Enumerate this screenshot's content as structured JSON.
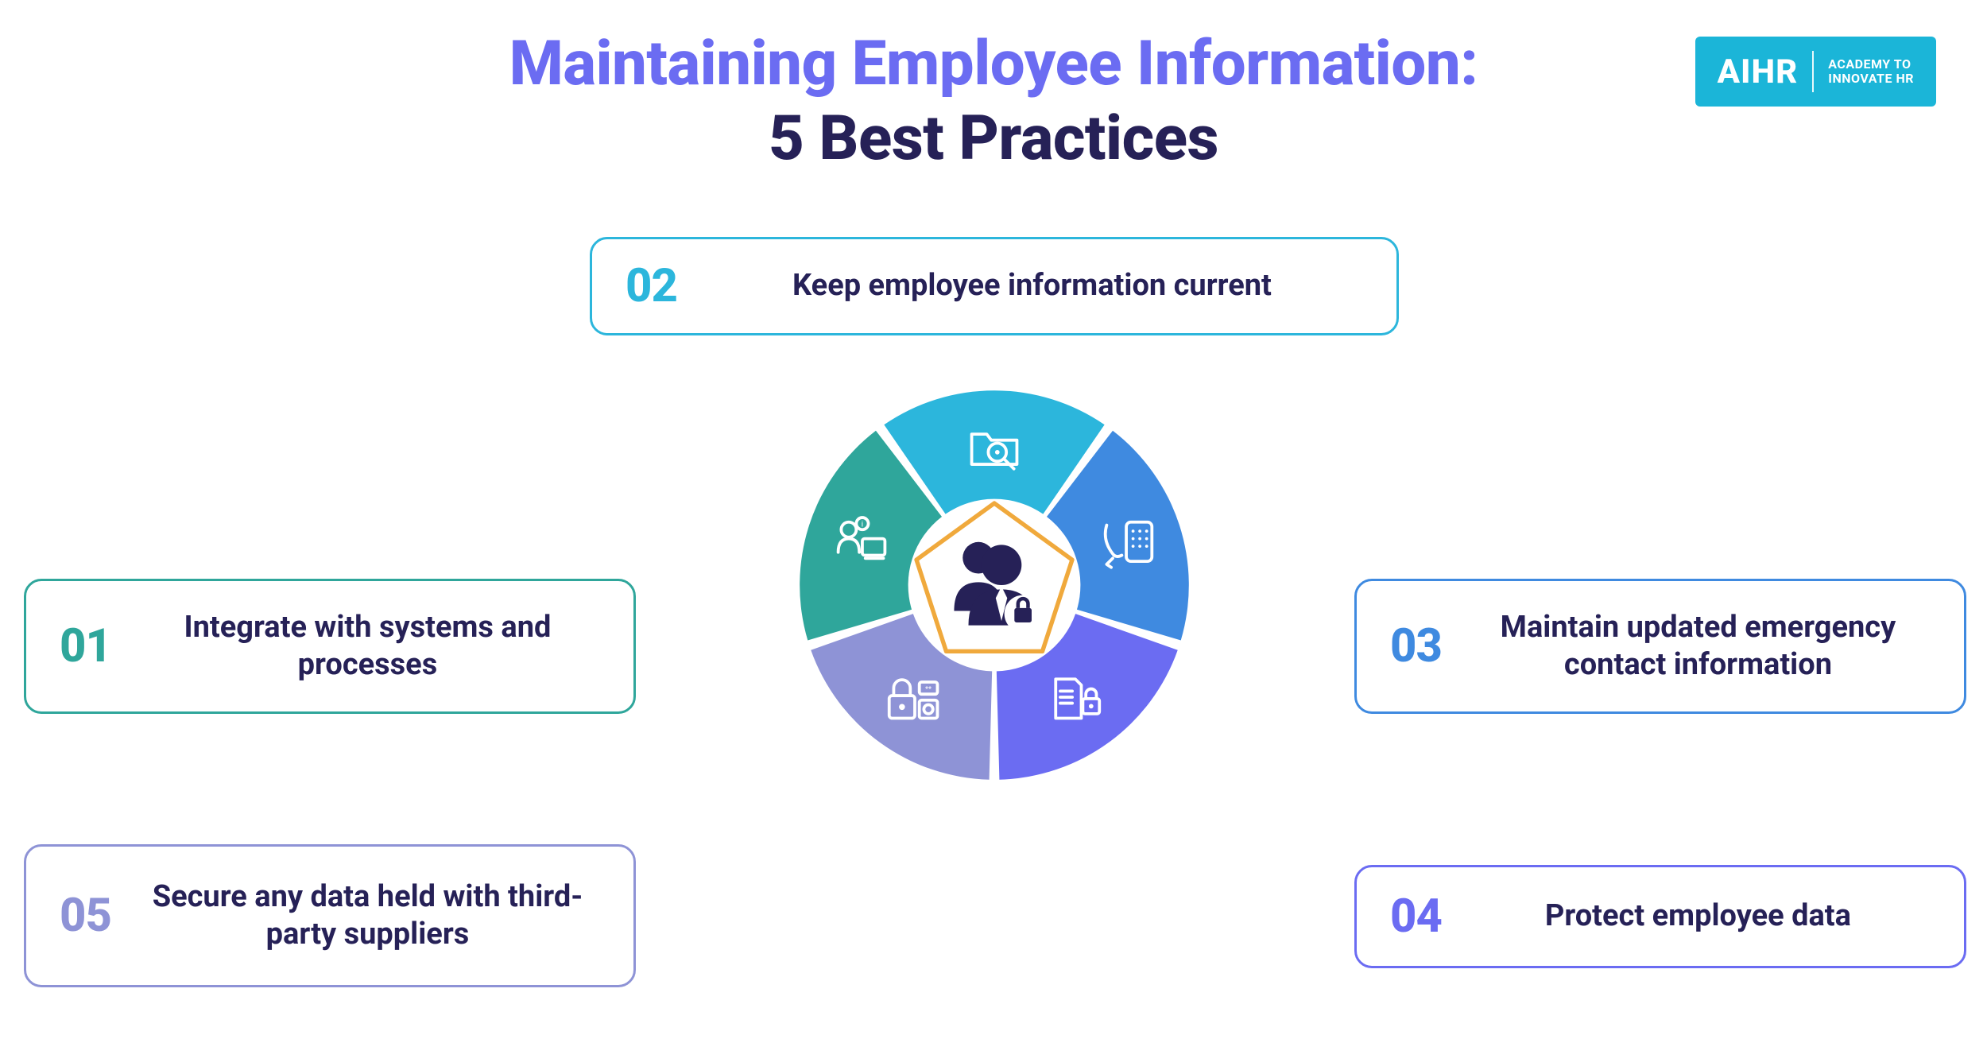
{
  "title": {
    "line1": "Maintaining Employee Information:",
    "line2": "5 Best Practices",
    "line1_color": "#6b6cf2",
    "line2_color": "#262157",
    "fontsize": 78,
    "fontweight": 800
  },
  "logo": {
    "main": "AIHR",
    "sub_line1": "ACADEMY TO",
    "sub_line2": "INNOVATE HR",
    "background": "#1bb5d8",
    "text_color": "#ffffff"
  },
  "label_color": "#262157",
  "label_fontsize": 38,
  "num_fontsize": 58,
  "box_border_width": 3,
  "box_border_radius": 22,
  "practices": {
    "p01": {
      "num": "01",
      "label": "Integrate with systems and processes",
      "color": "#2fa69b"
    },
    "p02": {
      "num": "02",
      "label": "Keep employee information current",
      "color": "#2cb6dc"
    },
    "p03": {
      "num": "03",
      "label": "Maintain updated emergency contact information",
      "color": "#3f8ae0"
    },
    "p04": {
      "num": "04",
      "label": "Protect employee data",
      "color": "#6b6cf2"
    },
    "p05": {
      "num": "05",
      "label": "Secure any data held with third-party suppliers",
      "color": "#8e93d6"
    }
  },
  "wheel": {
    "type": "segmented-donut",
    "outer_radius": 271,
    "inner_radius": 120,
    "gap_deg": 3,
    "segment_colors": {
      "seg1_integrate": "#2fa69b",
      "seg2_current": "#2cb6dc",
      "seg3_emergency": "#3f8ae0",
      "seg4_protect": "#6b6cf2",
      "seg5_thirdparty": "#8e93d6"
    },
    "segment_icons": {
      "seg1_integrate": "person-info-desk-icon",
      "seg2_current": "folder-search-icon",
      "seg3_emergency": "phone-dial-icon",
      "seg4_protect": "document-lock-icon",
      "seg5_thirdparty": "padlock-code-icon"
    },
    "center": {
      "pentagon_stroke": "#f0a93c",
      "pentagon_stroke_width": 6,
      "pentagon_fill": "#ffffff",
      "icon_color": "#262157",
      "icon_name": "people-lock-icon"
    },
    "background": "#ffffff"
  }
}
